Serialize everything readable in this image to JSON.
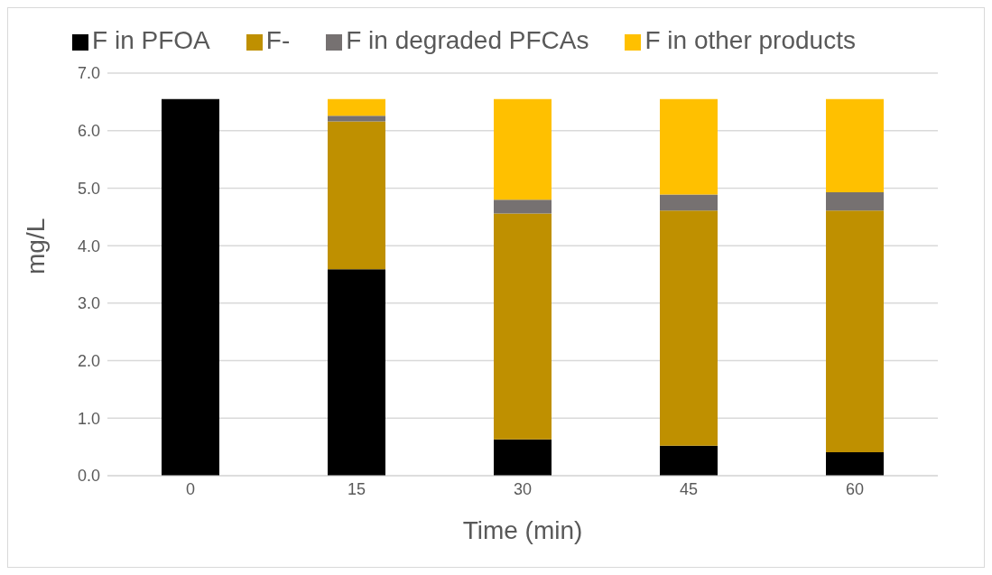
{
  "chart_data": {
    "type": "bar",
    "stacked": true,
    "categories": [
      "0",
      "15",
      "30",
      "45",
      "60"
    ],
    "xlabel": "Time (min)",
    "ylabel": "mg/L",
    "ylim": [
      0,
      7
    ],
    "yticks": [
      {
        "value": 0,
        "label": "0.0"
      },
      {
        "value": 1,
        "label": "1.0"
      },
      {
        "value": 2,
        "label": "2.0"
      },
      {
        "value": 3,
        "label": "3.0"
      },
      {
        "value": 4,
        "label": "4.0"
      },
      {
        "value": 5,
        "label": "5.0"
      },
      {
        "value": 6,
        "label": "6.0"
      },
      {
        "value": 7,
        "label": "7.0"
      }
    ],
    "grid": "y",
    "legend": "top",
    "series": [
      {
        "name": "F in PFOA",
        "color": "#000000",
        "values": [
          6.55,
          3.59,
          0.63,
          0.52,
          0.41
        ]
      },
      {
        "name": "F-",
        "color": "#bf9000",
        "values": [
          0,
          2.57,
          3.93,
          4.09,
          4.2
        ]
      },
      {
        "name": "F in degraded PFCAs",
        "color": "#767171",
        "values": [
          0,
          0.1,
          0.24,
          0.28,
          0.32
        ]
      },
      {
        "name": "F in other products",
        "color": "#ffc000",
        "values": [
          0,
          0.29,
          1.75,
          1.66,
          1.62
        ]
      }
    ]
  }
}
